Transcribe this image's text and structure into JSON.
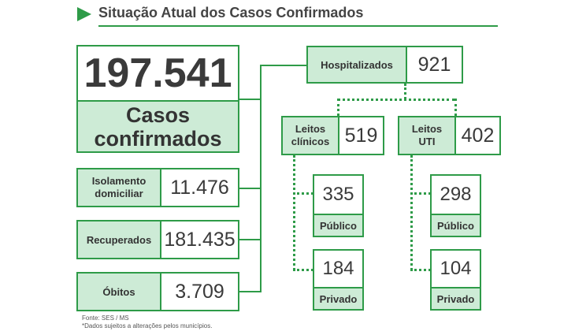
{
  "header": {
    "title": "Situação Atual dos Casos Confirmados"
  },
  "colors": {
    "accent": "#2e9b48",
    "label_bg": "#cdebd6"
  },
  "icons": {
    "title_marker": "play-triangle-icon"
  },
  "main": {
    "total_value": "197.541",
    "total_label_line1": "Casos",
    "total_label_line2": "confirmados"
  },
  "left": {
    "isolamento": {
      "label_line1": "Isolamento",
      "label_line2": "domiciliar",
      "value": "11.476"
    },
    "recuperados": {
      "label": "Recuperados",
      "value": "181.435"
    },
    "obitos": {
      "label": "Óbitos",
      "value": "3.709"
    }
  },
  "hospital": {
    "label": "Hospitalizados",
    "value": "921",
    "clinicos": {
      "label_line1": "Leitos",
      "label_line2": "clínicos",
      "value": "519",
      "publico": {
        "value": "335",
        "label": "Público"
      },
      "privado": {
        "value": "184",
        "label": "Privado"
      }
    },
    "uti": {
      "label_line1": "Leitos",
      "label_line2": "UTI",
      "value": "402",
      "publico": {
        "value": "298",
        "label": "Público"
      },
      "privado": {
        "value": "104",
        "label": "Privado"
      }
    }
  },
  "footer": {
    "source": "Fonte: SES / MS",
    "note": "*Dados sujeitos a alterações pelos municípios."
  }
}
